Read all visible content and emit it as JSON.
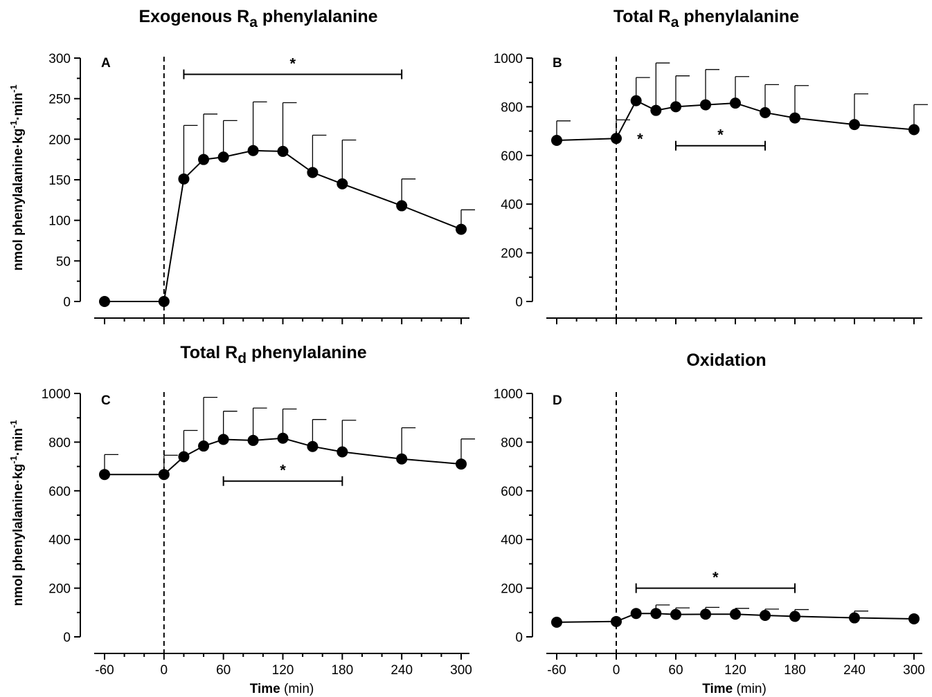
{
  "ylabel": "nmol phenylalanine·kg",
  "ylabel_sup1": "-1",
  "ylabel_mid": "·min",
  "ylabel_sup2": "-1",
  "xlabel": "Time",
  "xunit": "(min)",
  "chart_data": [
    {
      "type": "line",
      "panel": "A",
      "title": "Exogenous R",
      "title_sub": "a",
      "title_rest": " phenylalanine",
      "x": [
        -60,
        0,
        20,
        40,
        60,
        90,
        120,
        150,
        180,
        240,
        300
      ],
      "y": [
        0,
        0,
        151,
        175,
        178,
        186,
        185,
        159,
        145,
        118,
        89
      ],
      "err": [
        0,
        0,
        66,
        56,
        45,
        60,
        60,
        46,
        54,
        33,
        24
      ],
      "xlim": [
        -60,
        300
      ],
      "ylim": [
        0,
        300
      ],
      "yticks": [
        0,
        50,
        100,
        150,
        200,
        250,
        300
      ],
      "xticks": [
        -60,
        0,
        60,
        120,
        180,
        240,
        300
      ],
      "show_xtick_labels": false,
      "show_ylabel": true,
      "show_xlabel": false,
      "annotations": [
        {
          "text": "*",
          "bar": [
            20,
            240
          ],
          "y": 280
        }
      ]
    },
    {
      "type": "line",
      "panel": "B",
      "title": "Total R",
      "title_sub": "a",
      "title_rest": " phenylalanine",
      "x": [
        -60,
        0,
        20,
        40,
        60,
        90,
        120,
        150,
        180,
        240,
        300
      ],
      "y": [
        662,
        670,
        825,
        785,
        800,
        808,
        815,
        776,
        754,
        727,
        706
      ],
      "err": [
        80,
        76,
        95,
        195,
        127,
        145,
        109,
        115,
        133,
        126,
        103
      ],
      "xlim": [
        -60,
        300
      ],
      "ylim": [
        0,
        1000
      ],
      "yticks": [
        0,
        200,
        400,
        600,
        800,
        1000
      ],
      "xticks": [
        -60,
        0,
        60,
        120,
        180,
        240,
        300
      ],
      "show_xtick_labels": false,
      "show_ylabel": false,
      "show_xlabel": false,
      "annotations": [
        {
          "text": "*",
          "point": [
            24,
            680
          ]
        },
        {
          "text": "*",
          "bar": [
            60,
            150
          ],
          "y": 640
        }
      ]
    },
    {
      "type": "line",
      "panel": "C",
      "title": "Total R",
      "title_sub": "d",
      "title_rest": " phenylalanine",
      "x": [
        -60,
        0,
        20,
        40,
        60,
        90,
        120,
        150,
        180,
        240,
        300
      ],
      "y": [
        667,
        667,
        740,
        784,
        811,
        807,
        816,
        782,
        760,
        731,
        710
      ],
      "err": [
        82,
        79,
        108,
        200,
        116,
        133,
        120,
        111,
        130,
        128,
        103
      ],
      "xlim": [
        -60,
        300
      ],
      "ylim": [
        0,
        1000
      ],
      "yticks": [
        0,
        200,
        400,
        600,
        800,
        1000
      ],
      "xticks": [
        -60,
        0,
        60,
        120,
        180,
        240,
        300
      ],
      "show_xtick_labels": true,
      "show_ylabel": true,
      "show_xlabel": true,
      "annotations": [
        {
          "text": "*",
          "bar": [
            60,
            180
          ],
          "y": 640
        }
      ]
    },
    {
      "type": "line",
      "panel": "D",
      "title": "Oxidation",
      "title_sub": "",
      "title_rest": "",
      "x": [
        -60,
        0,
        20,
        40,
        60,
        90,
        120,
        150,
        180,
        240,
        300
      ],
      "y": [
        60,
        63,
        96,
        96,
        92,
        93,
        93,
        88,
        84,
        78,
        74
      ],
      "err": [
        0,
        0,
        0,
        35,
        27,
        28,
        24,
        26,
        28,
        28,
        0
      ],
      "xlim": [
        -60,
        300
      ],
      "ylim": [
        0,
        1000
      ],
      "yticks": [
        0,
        200,
        400,
        600,
        800,
        1000
      ],
      "xticks": [
        -60,
        0,
        60,
        120,
        180,
        240,
        300
      ],
      "show_xtick_labels": true,
      "show_ylabel": false,
      "show_xlabel": true,
      "annotations": [
        {
          "text": "*",
          "bar": [
            20,
            180
          ],
          "y": 200
        }
      ]
    }
  ]
}
